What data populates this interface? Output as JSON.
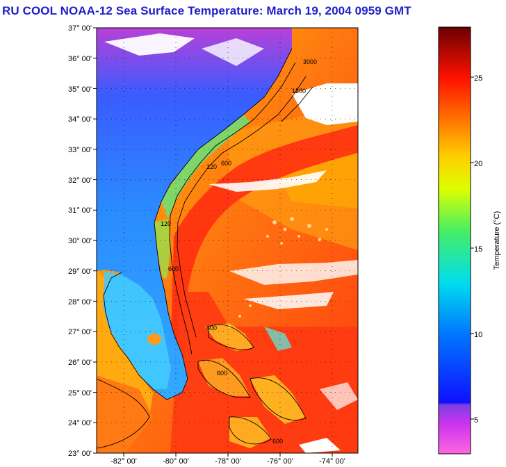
{
  "title": "RU COOL  NOAA-12  Sea Surface Temperature:  March 19, 2004 0959 GMT",
  "map": {
    "latitude_labels": [
      "37° 00'",
      "36° 00'",
      "35° 00'",
      "34° 00'",
      "33° 00'",
      "32° 00'",
      "31° 00'",
      "30° 00'",
      "29° 00'",
      "28° 00'",
      "27° 00'",
      "26° 00'",
      "25° 00'",
      "24° 00'",
      "23° 00'"
    ],
    "longitude_labels": [
      "-82° 00'",
      "-80° 00'",
      "-78° 00'",
      "-76° 00'",
      "-74° 00'"
    ],
    "contour_labels": [
      "120",
      "600",
      "1200",
      "3000"
    ]
  },
  "colorbar": {
    "label": "Temperature (°C)",
    "tick_labels": [
      "25",
      "20",
      "15",
      "10",
      "5"
    ],
    "range": [
      3,
      28
    ]
  },
  "colors": {
    "title": "#1d1dcc",
    "land_near": "#2255ee",
    "land_far": "#9933cc",
    "cloud": "#ffffff",
    "warm_water": "#ff3311",
    "mid_water": "#ff9900"
  }
}
